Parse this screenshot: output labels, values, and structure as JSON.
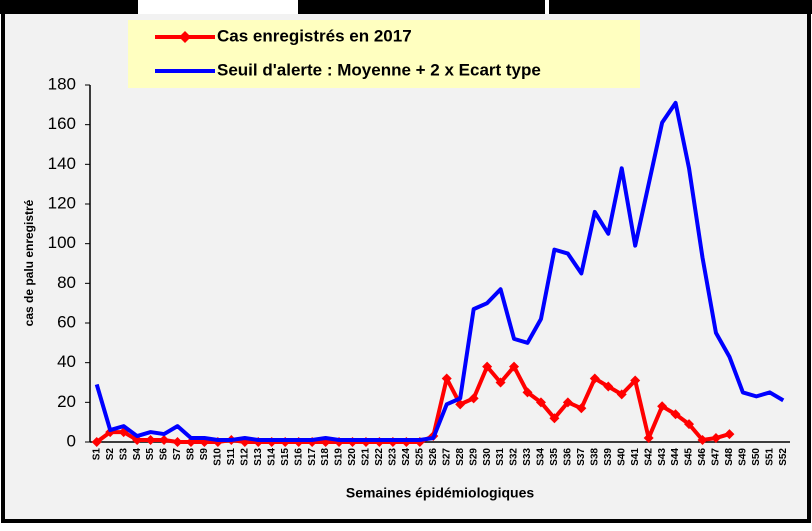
{
  "chart_data": {
    "type": "line",
    "y_label": "cas de palu enregistré",
    "x_label": "Semaines épidémiologiques",
    "categories": [
      "S1",
      "S2",
      "S3",
      "S4",
      "S5",
      "S6",
      "S7",
      "S8",
      "S9",
      "S10",
      "S11",
      "S12",
      "S13",
      "S14",
      "S15",
      "S16",
      "S17",
      "S18",
      "S19",
      "S20",
      "S21",
      "S22",
      "S23",
      "S24",
      "S25",
      "S26",
      "S27",
      "S28",
      "S29",
      "S30",
      "S31",
      "S32",
      "S33",
      "S34",
      "S35",
      "S36",
      "S37",
      "S38",
      "S39",
      "S40",
      "S41",
      "S42",
      "S43",
      "S44",
      "S45",
      "S46",
      "S47",
      "S48",
      "S49",
      "S50",
      "S51",
      "S52"
    ],
    "series": [
      {
        "name": "Cas enregistrés en 2017",
        "color": "#ff0000",
        "marker": "diamond",
        "values": [
          0,
          5,
          5,
          1,
          1,
          1,
          0,
          0,
          0,
          0,
          1,
          0,
          0,
          0,
          0,
          0,
          0,
          0,
          0,
          0,
          0,
          0,
          0,
          0,
          0,
          3,
          32,
          19,
          22,
          38,
          30,
          38,
          25,
          20,
          12,
          20,
          17,
          32,
          28,
          24,
          31,
          2,
          18,
          14,
          9,
          1,
          2,
          4,
          null,
          null,
          null,
          null
        ]
      },
      {
        "name": "Seuil d'alerte : Moyenne + 2 x Ecart type",
        "color": "#0000ff",
        "values": [
          29,
          6,
          8,
          3,
          5,
          4,
          8,
          2,
          2,
          1,
          1,
          2,
          1,
          1,
          1,
          1,
          1,
          2,
          1,
          1,
          1,
          1,
          1,
          1,
          1,
          2,
          19,
          22,
          67,
          70,
          77,
          52,
          50,
          62,
          97,
          95,
          85,
          116,
          105,
          138,
          99,
          130,
          161,
          171,
          138,
          93,
          55,
          43,
          25,
          23,
          25,
          21
        ]
      }
    ],
    "ylim": [
      0,
      180
    ],
    "yticks": [
      0,
      20,
      40,
      60,
      80,
      100,
      120,
      140,
      160,
      180
    ],
    "grid": false,
    "legend": "top"
  }
}
